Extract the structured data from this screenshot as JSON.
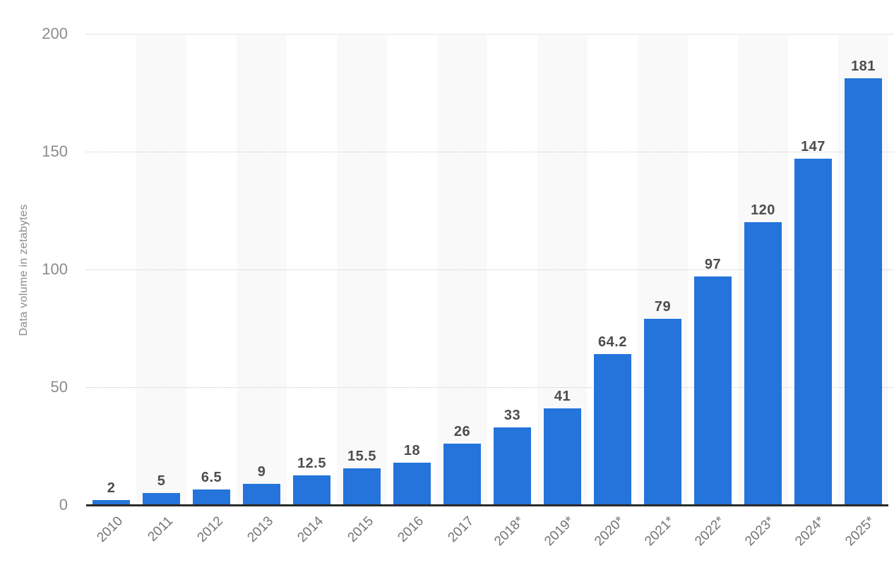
{
  "chart_data": {
    "type": "bar",
    "title": "",
    "categories": [
      "2010",
      "2011",
      "2012",
      "2013",
      "2014",
      "2015",
      "2016",
      "2017",
      "2018*",
      "2019*",
      "2020*",
      "2021*",
      "2022*",
      "2023*",
      "2024*",
      "2025*"
    ],
    "values": [
      2,
      5,
      6.5,
      9,
      12.5,
      15.5,
      18,
      26,
      33,
      41,
      64.2,
      79,
      97,
      120,
      147,
      181
    ],
    "value_labels": [
      "2",
      "5",
      "6.5",
      "9",
      "12.5",
      "15.5",
      "18",
      "26",
      "33",
      "41",
      "64.2",
      "79",
      "97",
      "120",
      "147",
      "181"
    ],
    "xlabel": "",
    "ylabel": "Data volume in zetabytes",
    "ylim": [
      0,
      200
    ],
    "yticks": [
      0,
      50,
      100,
      150,
      200
    ],
    "grid": "horizontal-dotted",
    "legend": "none",
    "stripe_pattern": "alternating-vertical-bands-on-odd-columns",
    "colors": {
      "bar": "#2474db",
      "stripe": "#f9f9f9",
      "gridline": "#c9c9c9",
      "axis_line": "#2b2b2b",
      "value_label": "#4d4d4d",
      "tick_label": "#8c8c8c",
      "category_label": "#757575",
      "y_title": "#8c8c8c",
      "background": "#ffffff"
    }
  }
}
